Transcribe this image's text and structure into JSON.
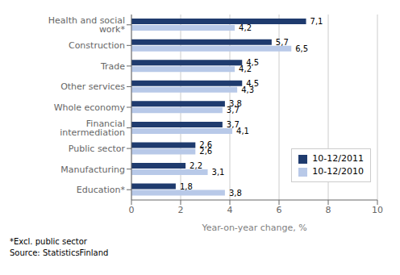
{
  "chart_data": {
    "type": "bar",
    "orientation": "horizontal",
    "categories": [
      "Health and social work*",
      "Construction",
      "Trade",
      "Other services",
      "Whole economy",
      "Financial intermediation",
      "Public sector",
      "Manufacturing",
      "Education*"
    ],
    "series": [
      {
        "name": "10-12/2011",
        "color": "#1F3B6E",
        "values": [
          7.1,
          5.7,
          4.5,
          4.5,
          3.8,
          3.7,
          2.6,
          2.2,
          1.8
        ],
        "value_labels": [
          "7,1",
          "5,7",
          "4,5",
          "4,5",
          "3,8",
          "3,7",
          "2,6",
          "2,2",
          "1,8"
        ]
      },
      {
        "name": "10-12/2010",
        "color": "#B8C9E8",
        "values": [
          4.2,
          6.5,
          4.2,
          4.3,
          3.7,
          4.1,
          2.6,
          3.1,
          3.8
        ],
        "value_labels": [
          "4,2",
          "6,5",
          "4,2",
          "4,3",
          "3,7",
          "4,1",
          "2,6",
          "3,1",
          "3,8"
        ]
      }
    ],
    "xlabel": "Year-on-year change, %",
    "xlim": [
      0,
      10
    ],
    "xticks": [
      0,
      2,
      4,
      6,
      8,
      10
    ],
    "grid": true,
    "legend": "lower right",
    "data_labels": true,
    "annotations": [
      "*Excl. public sector",
      "Source: StatisticsFinland"
    ]
  }
}
